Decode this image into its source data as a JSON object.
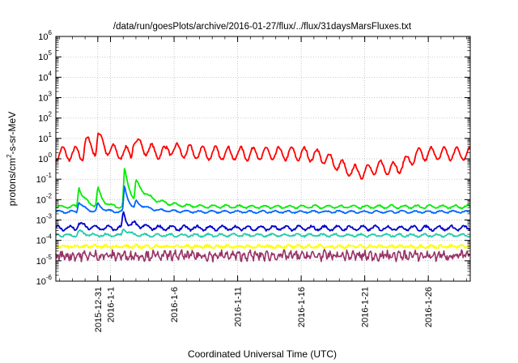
{
  "chart_data": {
    "type": "line",
    "title": "/data/run/goesPlots/archive/2016-01-27/flux/../flux/31daysMarsFluxes.txt",
    "xlabel": "Coordinated Universal Time (UTC)",
    "ylabel_parts": {
      "base": "protons/cm",
      "sup": "2",
      "rest": "-s-sr-MeV"
    },
    "yscale": "log",
    "ylim_exp": [
      -6,
      6
    ],
    "y_tick_base": "10",
    "y_tick_exponents": [
      "-6",
      "-5",
      "-4",
      "-3",
      "-2",
      "-1",
      "0",
      "1",
      "2",
      "3",
      "4",
      "5",
      "6"
    ],
    "x_range_days": [
      -4.3,
      28.3
    ],
    "x_ticks": [
      {
        "label": "2015-12-31",
        "day": -1
      },
      {
        "label": "2016-1-1",
        "day": 0
      },
      {
        "label": "2016-1-6",
        "day": 5
      },
      {
        "label": "2016-1-11",
        "day": 10
      },
      {
        "label": "2016-1-16",
        "day": 15
      },
      {
        "label": "2016-1-21",
        "day": 20
      },
      {
        "label": "2016-1-26",
        "day": 25
      }
    ],
    "grid": true,
    "series": [
      {
        "color": "#ff0000",
        "base_log": 0.25,
        "amp": 0.32,
        "period": 1.0,
        "noise": 0.06,
        "events": [
          [
            -2.0,
            0.6,
            0.9
          ],
          [
            -1.0,
            0.75,
            0.5
          ],
          [
            1.8,
            0.7,
            0.9
          ],
          [
            4.5,
            0.25,
            1.5
          ]
        ],
        "dips": [
          [
            19.5,
            0.9,
            2.2
          ],
          [
            22.5,
            0.55,
            1.2
          ]
        ]
      },
      {
        "color": "#00ee00",
        "base_log": -2.35,
        "amp": 0.07,
        "period": 1.0,
        "noise": 0.03,
        "events": [
          [
            -2.5,
            1.0,
            0.5
          ],
          [
            -1.0,
            0.9,
            0.4
          ],
          [
            1.1,
            1.9,
            0.5
          ],
          [
            2.0,
            1.0,
            1.4
          ]
        ],
        "dips": []
      },
      {
        "color": "#0066ff",
        "base_log": -2.6,
        "amp": 0.05,
        "period": 1.0,
        "noise": 0.025,
        "events": [
          [
            -2.5,
            0.5,
            0.5
          ],
          [
            -1.0,
            0.4,
            0.4
          ],
          [
            1.1,
            1.3,
            0.4
          ],
          [
            2.0,
            0.4,
            1.2
          ]
        ],
        "dips": []
      },
      {
        "color": "#0000cc",
        "base_log": -3.4,
        "amp": 0.1,
        "period": 1.0,
        "noise": 0.05,
        "events": [
          [
            -2.5,
            0.25,
            0.5
          ],
          [
            1.0,
            0.85,
            0.3
          ],
          [
            1.8,
            0.2,
            0.8
          ]
        ],
        "dips": []
      },
      {
        "color": "#22ccaa",
        "base_log": -3.75,
        "amp": 0.06,
        "period": 1.0,
        "noise": 0.04,
        "events": [
          [
            -2.5,
            0.2,
            0.5
          ],
          [
            1.0,
            0.4,
            0.4
          ]
        ],
        "dips": []
      },
      {
        "color": "#ffff00",
        "base_log": -4.3,
        "amp": 0.05,
        "period": 0.8,
        "noise": 0.06,
        "events": [],
        "dips": []
      },
      {
        "color": "#993366",
        "base_log": -4.75,
        "amp": 0.12,
        "period": 0.45,
        "noise": 0.18,
        "events": [],
        "dips": []
      }
    ]
  }
}
